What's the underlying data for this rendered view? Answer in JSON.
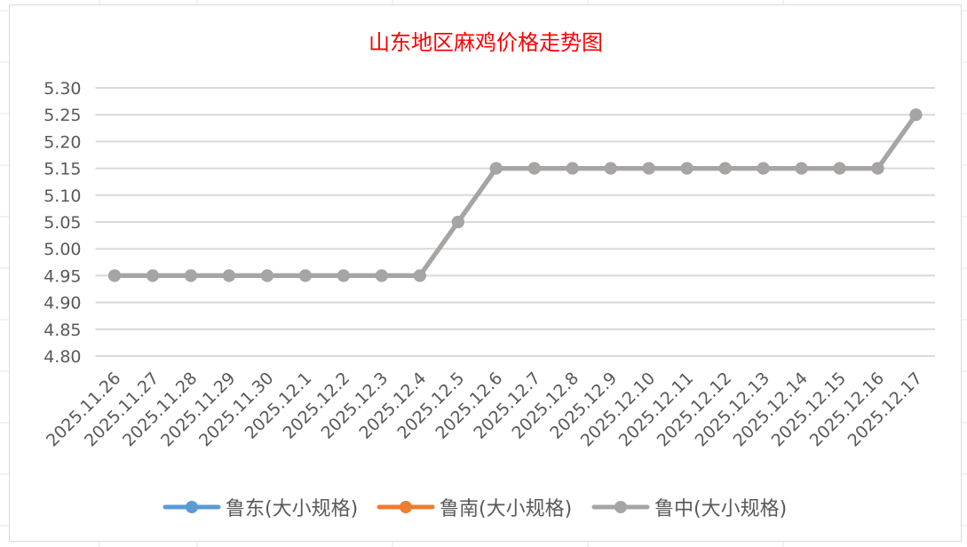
{
  "chart_data": {
    "type": "line",
    "title": "山东地区麻鸡价格走势图",
    "title_color": "#FF0000",
    "xlabel": "",
    "ylabel": "",
    "categories": [
      "2025.11.26",
      "2025.11.27",
      "2025.11.28",
      "2025.11.29",
      "2025.11.30",
      "2025.12.1",
      "2025.12.2",
      "2025.12.3",
      "2025.12.4",
      "2025.12.5",
      "2025.12.6",
      "2025.12.7",
      "2025.12.8",
      "2025.12.9",
      "2025.12.10",
      "2025.12.11",
      "2025.12.12",
      "2025.12.13",
      "2025.12.14",
      "2025.12.15",
      "2025.12.16",
      "2025.12.17"
    ],
    "ylim": [
      4.8,
      5.3
    ],
    "yticks": [
      "4.80",
      "4.85",
      "4.90",
      "4.95",
      "5.00",
      "5.05",
      "5.10",
      "5.15",
      "5.20",
      "5.25",
      "5.30"
    ],
    "grid": true,
    "legend_position": "bottom",
    "series": [
      {
        "name": "鲁东(大小规格)",
        "color": "#5B9BD5",
        "values": [
          4.95,
          4.95,
          4.95,
          4.95,
          4.95,
          4.95,
          4.95,
          4.95,
          4.95,
          5.05,
          5.15,
          5.15,
          5.15,
          5.15,
          5.15,
          5.15,
          5.15,
          5.15,
          5.15,
          5.15,
          5.15,
          5.25
        ]
      },
      {
        "name": "鲁南(大小规格)",
        "color": "#ED7D31",
        "values": [
          4.95,
          4.95,
          4.95,
          4.95,
          4.95,
          4.95,
          4.95,
          4.95,
          4.95,
          5.05,
          5.15,
          5.15,
          5.15,
          5.15,
          5.15,
          5.15,
          5.15,
          5.15,
          5.15,
          5.15,
          5.15,
          5.25
        ]
      },
      {
        "name": "鲁中(大小规格)",
        "color": "#A5A5A5",
        "values": [
          4.95,
          4.95,
          4.95,
          4.95,
          4.95,
          4.95,
          4.95,
          4.95,
          4.95,
          5.05,
          5.15,
          5.15,
          5.15,
          5.15,
          5.15,
          5.15,
          5.15,
          5.15,
          5.15,
          5.15,
          5.15,
          5.25
        ]
      }
    ]
  }
}
